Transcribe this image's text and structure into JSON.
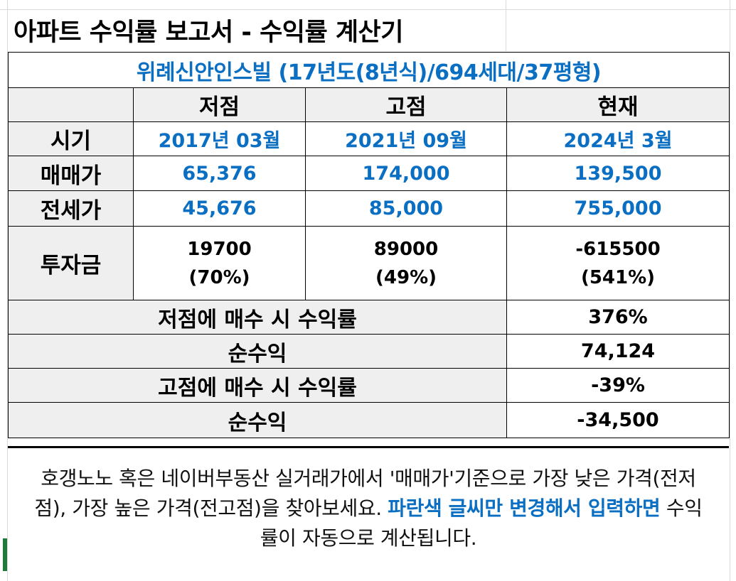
{
  "title": "아파트 수익률 보고서 - 수익률 계산기",
  "complex": "위례신안인스빌 (17년도(8년식)/694세대/37평형)",
  "columns": {
    "low": "저점",
    "high": "고점",
    "current": "현재"
  },
  "rows": {
    "period": {
      "label": "시기",
      "low": "2017년 03월",
      "high": "2021년 09월",
      "current": "2024년 3월"
    },
    "sale": {
      "label": "매매가",
      "low": "65,376",
      "high": "174,000",
      "current": "139,500"
    },
    "jeonse": {
      "label": "전세가",
      "low": "45,676",
      "high": "85,000",
      "current": "755,000"
    },
    "investment": {
      "label": "투자금",
      "low": "19700",
      "low_pct": "(70%)",
      "high": "89000",
      "high_pct": "(49%)",
      "current": "-615500",
      "current_pct": "(541%)"
    }
  },
  "results": [
    {
      "label": "저점에 매수 시 수익률",
      "value": "376%"
    },
    {
      "label": "순수익",
      "value": "74,124"
    },
    {
      "label": "고점에 매수 시 수익률",
      "value": "-39%"
    },
    {
      "label": "순수익",
      "value": "-34,500"
    }
  ],
  "note": {
    "part1": "호갱노노 혹은 네이버부동산 실거래가에서 '매매가'기준으로 가장 낮은 가격(전저점), 가장 높은 가격(전고점)을 찾아보세요. ",
    "highlight": "파란색 글씨만 변경해서 입력하면",
    "part2": " 수익률이 자동으로 계산됩니다."
  },
  "colors": {
    "blue_text": "#0a6fc2",
    "label_bg": "#efefef",
    "border": "#000000"
  }
}
